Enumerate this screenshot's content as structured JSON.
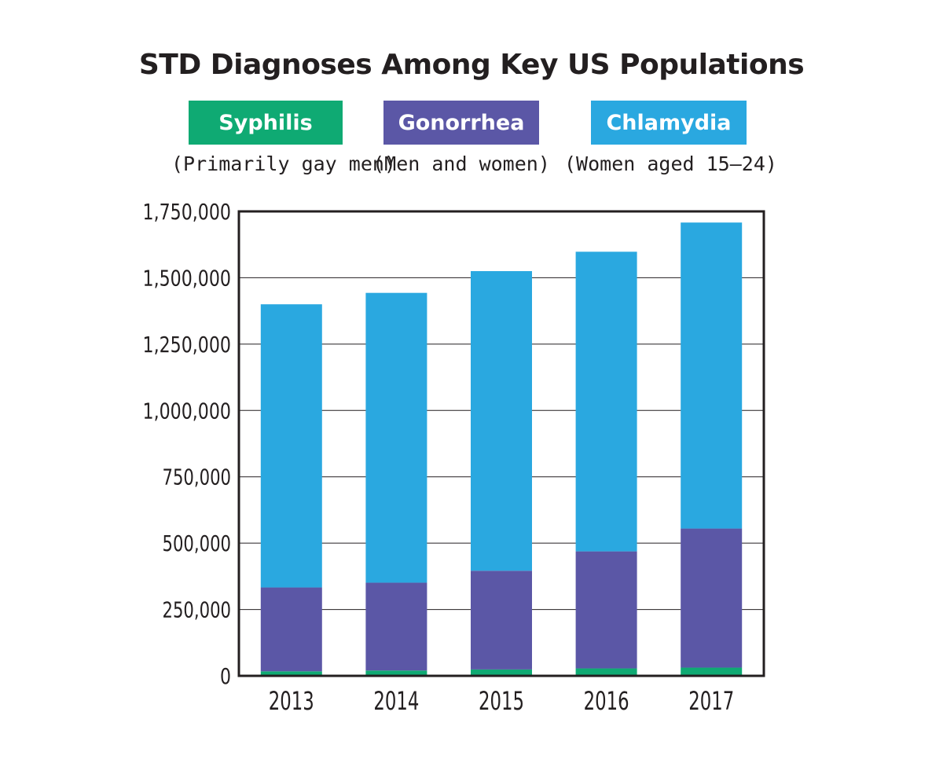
{
  "chart_data": {
    "type": "bar",
    "stacked": true,
    "title": "STD Diagnoses Among Key US Populations",
    "categories": [
      "2013",
      "2014",
      "2015",
      "2016",
      "2017"
    ],
    "series": [
      {
        "name": "Syphilis",
        "subtitle": "(Primarily gay men)",
        "color": "#0faa73",
        "values": [
          17000,
          20000,
          24000,
          28000,
          31000
        ]
      },
      {
        "name": "Gonorrhea",
        "subtitle": "(Men and women)",
        "color": "#5b57a6",
        "values": [
          316000,
          331000,
          372000,
          441000,
          524000
        ]
      },
      {
        "name": "Chlamydia",
        "subtitle": "(Women aged 15–24)",
        "color": "#2aa8e0",
        "values": [
          1067000,
          1092000,
          1129000,
          1129000,
          1153000
        ]
      }
    ],
    "ylim": [
      0,
      1750000
    ],
    "yticks": [
      "0",
      "250,000",
      "500,000",
      "750,000",
      "1,000,000",
      "1,250,000",
      "1,500,000",
      "1,750,000"
    ],
    "grid": true,
    "legend_position": "top"
  }
}
